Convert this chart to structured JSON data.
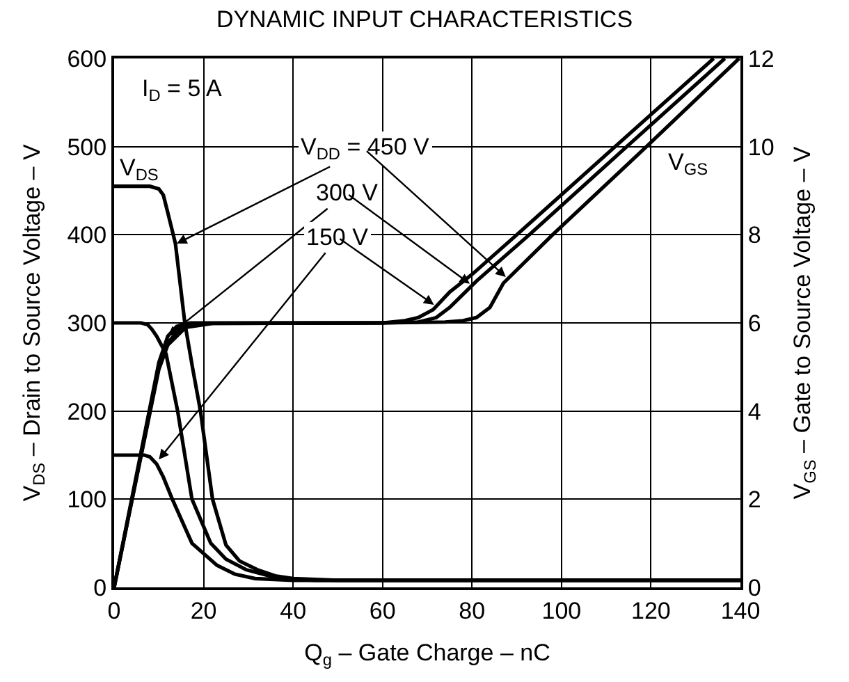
{
  "chart_data": {
    "type": "line",
    "title": "DYNAMIC INPUT CHARACTERISTICS",
    "xlabel": "Q$_{g}$ – Gate Charge – nC",
    "ylabel": "V$_{DS}$ – Drain to Source Voltage – V",
    "y2label": "V$_{GS}$ – Gate to Source Voltage – V",
    "series": [
      {
        "color": "#000000",
        "x": [
          0,
          8,
          10,
          11,
          12,
          13.7,
          15.8,
          17.5,
          19.3,
          22,
          25,
          28,
          32,
          36,
          40,
          50,
          140
        ],
        "values": [
          455,
          455,
          452,
          445,
          425,
          390,
          300,
          250,
          200,
          100,
          48,
          30,
          20,
          13,
          10,
          8,
          8
        ]
      },
      {
        "color": "#000000",
        "x": [
          0,
          6,
          7.5,
          8.4,
          9.5,
          11.6,
          14.2,
          17.4,
          21.6,
          25,
          29.5,
          37,
          45,
          140
        ],
        "values": [
          300,
          300,
          298,
          293,
          285,
          265,
          200,
          100,
          50,
          32,
          20,
          10,
          8,
          8
        ]
      },
      {
        "color": "#000000",
        "x": [
          0,
          5,
          6.8,
          8,
          9.5,
          11,
          13,
          17.4,
          23,
          27,
          31.5,
          40,
          140
        ],
        "values": [
          150,
          150,
          150,
          148,
          140,
          125,
          100,
          50,
          25,
          15,
          10,
          8,
          8
        ]
      },
      {
        "color": "#000000",
        "axis": "y2",
        "x": [
          0,
          10,
          12,
          16,
          22,
          60,
          74,
          78,
          81,
          84,
          87,
          98,
          119,
          139.7
        ],
        "values": [
          0,
          4.95,
          5.5,
          5.9,
          5.99,
          6,
          6.02,
          6.05,
          6.12,
          6.35,
          6.9,
          8,
          10,
          12
        ]
      },
      {
        "color": "#000000",
        "axis": "y2",
        "x": [
          0,
          10,
          12,
          15,
          19,
          60,
          68,
          72,
          75,
          78,
          81,
          92.8,
          114.6,
          136.5
        ],
        "values": [
          0,
          5,
          5.55,
          5.9,
          5.99,
          6,
          6.02,
          6.12,
          6.35,
          6.65,
          6.95,
          8,
          10,
          12
        ]
      },
      {
        "color": "#000000",
        "axis": "y2",
        "x": [
          0,
          10,
          12,
          14,
          17,
          60,
          65,
          68,
          71.3,
          75,
          80,
          90,
          112,
          134
        ],
        "values": [
          0,
          5.1,
          5.7,
          5.92,
          6,
          6,
          6.05,
          6.12,
          6.3,
          6.7,
          7.1,
          8,
          10,
          12
        ]
      }
    ],
    "xlim": [
      0,
      140
    ],
    "xticks": [
      0,
      20,
      40,
      60,
      80,
      100,
      120,
      140
    ],
    "ylim": [
      0,
      600
    ],
    "yticks": [
      0,
      100,
      200,
      300,
      400,
      500,
      600
    ],
    "y2lim": [
      0,
      12
    ],
    "y2ticks": [
      0,
      2,
      4,
      6,
      8,
      10,
      12
    ],
    "grid": true,
    "marker": "none",
    "line_style": "solid",
    "annotations": [
      "I$_{D}$ = 5 A",
      {
        "text": "V$_{DD}$ = 450 V",
        "x": 14,
        "y": 390
      },
      {
        "text": "300 V",
        "x": 12,
        "y": 285
      },
      {
        "text": "150 V",
        "x": 10,
        "y": 145
      },
      "V$_{DS}$",
      "V$_{GS}$"
    ]
  }
}
